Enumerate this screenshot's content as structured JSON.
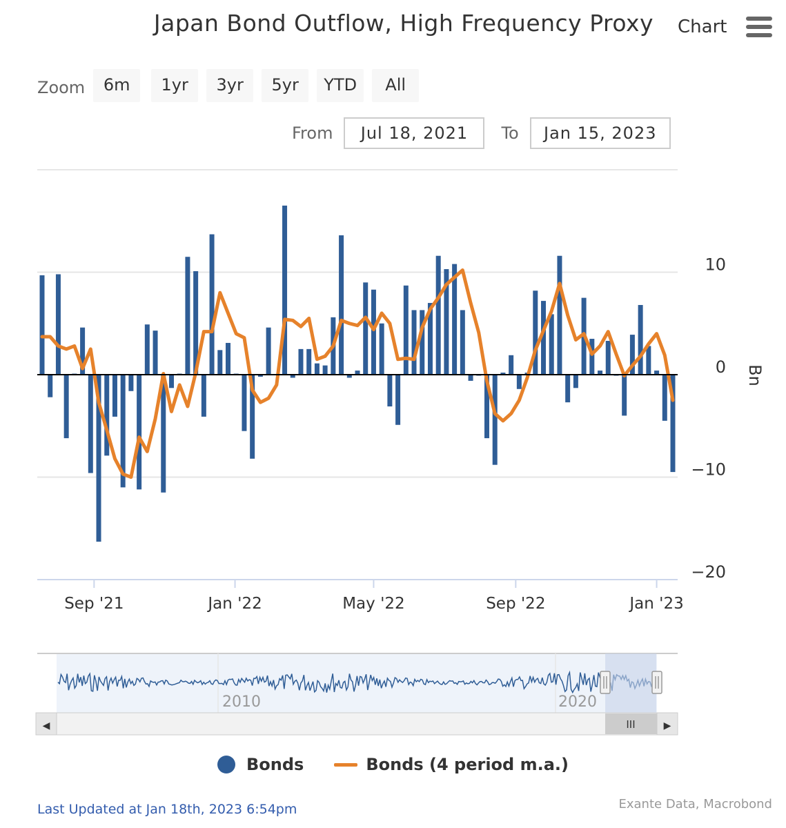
{
  "header": {
    "title": "Japan Bond Outflow, High Frequency Proxy",
    "menu_label": "Chart"
  },
  "zoom": {
    "label": "Zoom",
    "buttons": [
      "6m",
      "1yr",
      "3yr",
      "5yr",
      "YTD",
      "All"
    ]
  },
  "range": {
    "from_label": "From",
    "from_value": "Jul 18, 2021",
    "to_label": "To",
    "to_value": "Jan 15, 2023"
  },
  "colors": {
    "bars": "#2f5d96",
    "ma_line": "#e6822b",
    "navigator_fill": "#eef3fa",
    "navigator_mask": "#c8d4ea"
  },
  "chart_data": {
    "type": "bar",
    "title": "Japan Bond Outflow, High Frequency Proxy",
    "ylabel": "Bn",
    "ylim": [
      -20,
      20
    ],
    "yticks": [
      -20,
      -10,
      0,
      10
    ],
    "ytick_labels": [
      "−20",
      "−10",
      "0",
      "10"
    ],
    "xtick_labels": [
      "Sep '21",
      "Jan '22",
      "May '22",
      "Sep '22",
      "Jan '23"
    ],
    "x_start": "2021-07-18",
    "x_end": "2023-01-15",
    "legend_position": "bottom",
    "grid": true,
    "series": [
      {
        "name": "Bonds",
        "kind": "bar",
        "x": [
          "2021-07-18",
          "2021-07-25",
          "2021-08-01",
          "2021-08-08",
          "2021-08-15",
          "2021-08-22",
          "2021-08-29",
          "2021-09-05",
          "2021-09-12",
          "2021-09-19",
          "2021-09-26",
          "2021-10-03",
          "2021-10-10",
          "2021-10-17",
          "2021-10-24",
          "2021-10-31",
          "2021-11-07",
          "2021-11-14",
          "2021-11-21",
          "2021-11-28",
          "2021-12-05",
          "2021-12-12",
          "2021-12-19",
          "2021-12-26",
          "2022-01-02",
          "2022-01-09",
          "2022-01-16",
          "2022-01-23",
          "2022-01-30",
          "2022-02-06",
          "2022-02-13",
          "2022-02-20",
          "2022-02-27",
          "2022-03-06",
          "2022-03-13",
          "2022-03-20",
          "2022-03-27",
          "2022-04-03",
          "2022-04-10",
          "2022-04-17",
          "2022-04-24",
          "2022-05-01",
          "2022-05-08",
          "2022-05-15",
          "2022-05-22",
          "2022-05-29",
          "2022-06-05",
          "2022-06-12",
          "2022-06-19",
          "2022-06-26",
          "2022-07-03",
          "2022-07-10",
          "2022-07-17",
          "2022-07-24",
          "2022-07-31",
          "2022-08-07",
          "2022-08-14",
          "2022-08-21",
          "2022-08-28",
          "2022-09-04",
          "2022-09-11",
          "2022-09-18",
          "2022-09-25",
          "2022-10-02",
          "2022-10-09",
          "2022-10-16",
          "2022-10-23",
          "2022-10-30",
          "2022-11-06",
          "2022-11-13",
          "2022-11-20",
          "2022-11-27",
          "2022-12-04",
          "2022-12-11",
          "2022-12-18",
          "2022-12-25",
          "2023-01-01",
          "2023-01-08",
          "2023-01-15"
        ],
        "values": [
          9.7,
          -2.2,
          9.8,
          -6.2,
          0.1,
          4.6,
          -9.6,
          -16.3,
          -7.9,
          -4.1,
          -11.0,
          -1.6,
          -11.2,
          4.9,
          4.3,
          -11.5,
          -1.3,
          0.1,
          11.5,
          10.1,
          -4.1,
          13.7,
          2.4,
          3.1,
          0.1,
          -5.5,
          -8.2,
          -0.2,
          4.6,
          0.0,
          16.5,
          -0.3,
          2.5,
          2.5,
          1.1,
          0.9,
          5.6,
          13.6,
          -0.3,
          0.4,
          9.0,
          8.3,
          5.0,
          -3.1,
          -4.9,
          8.7,
          6.3,
          6.3,
          7.0,
          11.6,
          10.3,
          10.8,
          6.3,
          -0.6,
          -0.1,
          -6.2,
          -8.8,
          0.2,
          1.9,
          -1.4,
          0.2,
          8.2,
          7.2,
          5.9,
          11.6,
          -2.7,
          -1.3,
          7.5,
          3.5,
          0.4,
          3.3,
          -0.1,
          -4.0,
          3.9,
          6.8,
          2.8,
          0.4,
          -4.5,
          -9.5
        ]
      },
      {
        "name": "Bonds (4 period m.a.)",
        "kind": "line",
        "values": [
          3.7,
          3.7,
          2.8,
          2.5,
          2.8,
          0.6,
          2.5,
          -2.7,
          -5.4,
          -8.2,
          -9.7,
          -10.0,
          -6.1,
          -7.5,
          -4.3,
          0.1,
          -3.6,
          -1.0,
          -3.1,
          0.2,
          4.2,
          4.2,
          8.0,
          6.0,
          4.0,
          3.6,
          -1.5,
          -2.7,
          -2.3,
          -1.0,
          5.4,
          5.3,
          4.7,
          5.5,
          1.5,
          1.8,
          2.8,
          5.3,
          5.0,
          4.8,
          5.6,
          4.4,
          6.0,
          5.0,
          1.5,
          1.6,
          1.5,
          4.6,
          6.4,
          7.5,
          8.8,
          9.5,
          10.2,
          7.0,
          4.1,
          -0.6,
          -3.8,
          -4.5,
          -3.8,
          -2.5,
          -0.3,
          2.4,
          4.3,
          6.2,
          8.9,
          5.8,
          3.4,
          4.0,
          2.0,
          2.8,
          4.2,
          2.0,
          -0.1,
          0.9,
          1.8,
          3.0,
          4.0,
          1.9,
          -2.5
        ]
      }
    ]
  },
  "navigator": {
    "tick_labels": [
      "2010",
      "2020"
    ],
    "scroll_left_arrow": "◀",
    "scroll_right_arrow": "▶",
    "scroll_thumb_grip": "III",
    "handle_grip": "||"
  },
  "legend": {
    "items": [
      "Bonds",
      "Bonds (4 period m.a.)"
    ]
  },
  "credits": "Exante Data, Macrobond",
  "last_updated": "Last Updated at Jan 18th, 2023 6:54pm"
}
